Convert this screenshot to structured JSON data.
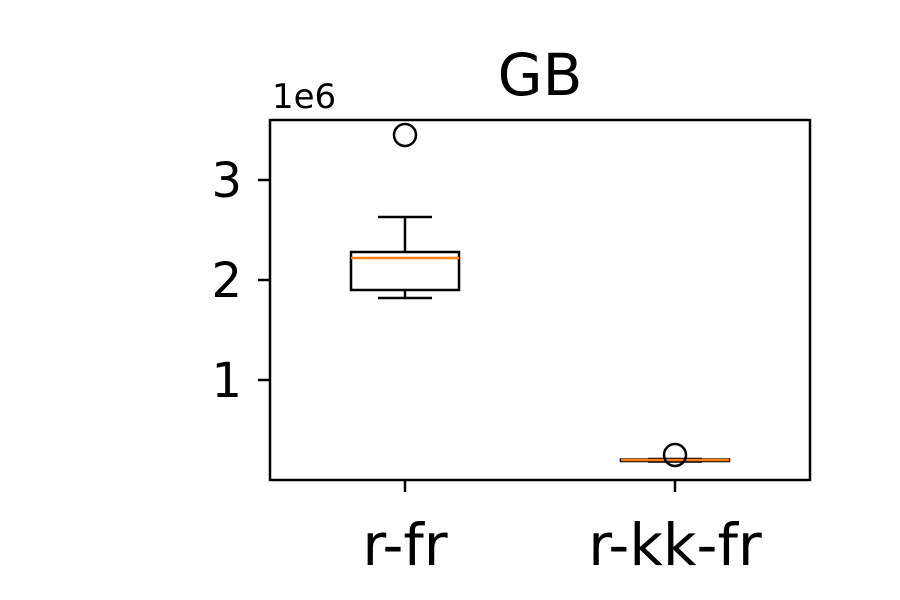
{
  "chart_data": {
    "type": "box",
    "title": "GB",
    "xlabel": "",
    "ylabel": "",
    "y_offset_label": "1e6",
    "ylim": [
      0,
      3.6
    ],
    "y_ticks": [
      1,
      2,
      3
    ],
    "y_tick_labels": [
      "1",
      "2",
      "3"
    ],
    "grid": false,
    "categories": [
      "r-fr",
      "r-kk-fr"
    ],
    "boxes": [
      {
        "category": "r-fr",
        "whisker_low": 1.82,
        "q1": 1.9,
        "median": 2.22,
        "q3": 2.28,
        "whisker_high": 2.63,
        "outliers": [
          3.45
        ]
      },
      {
        "category": "r-kk-fr",
        "whisker_low": 0.185,
        "q1": 0.19,
        "median": 0.2,
        "q3": 0.205,
        "whisker_high": 0.21,
        "outliers": [
          0.25
        ]
      }
    ],
    "colors": {
      "box": "#000000",
      "median": "#ff7f0e",
      "axes": "#000000"
    }
  }
}
